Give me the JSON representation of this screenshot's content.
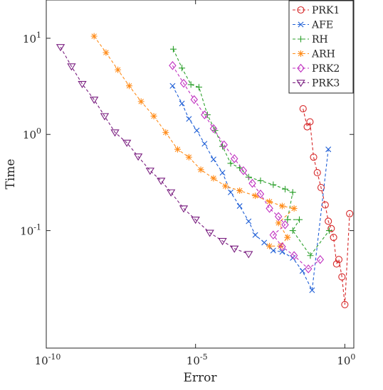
{
  "chart_data": {
    "type": "scatter",
    "title": "",
    "xlabel": "Error",
    "ylabel": "Time",
    "xscale": "log",
    "yscale": "log",
    "xlim": [
      1e-10,
      2
    ],
    "ylim": [
      0.006,
      25
    ],
    "xticks": [
      {
        "value": 1e-10,
        "base": "10",
        "exp": "-10"
      },
      {
        "value": 1e-05,
        "base": "10",
        "exp": "-5"
      },
      {
        "value": 1,
        "base": "10",
        "exp": "0"
      }
    ],
    "yticks": [
      {
        "value": 0.1,
        "base": "10",
        "exp": "-1"
      },
      {
        "value": 1,
        "base": "10",
        "exp": "0"
      },
      {
        "value": 10,
        "base": "10",
        "exp": "1"
      }
    ],
    "grid": false,
    "legend_position": "top-right",
    "series": [
      {
        "name": "PRK1",
        "color": "#d62728",
        "marker": "circle",
        "points": [
          [
            0.04,
            1.85
          ],
          [
            0.055,
            1.2
          ],
          [
            0.068,
            1.35
          ],
          [
            0.09,
            0.58
          ],
          [
            0.12,
            0.4
          ],
          [
            0.16,
            0.28
          ],
          [
            0.22,
            0.185
          ],
          [
            0.28,
            0.125
          ],
          [
            0.35,
            0.105
          ],
          [
            0.42,
            0.085
          ],
          [
            0.53,
            0.045
          ],
          [
            0.63,
            0.05
          ],
          [
            0.8,
            0.033
          ],
          [
            1.0,
            0.017
          ],
          [
            1.45,
            0.15
          ]
        ]
      },
      {
        "name": "AFE",
        "color": "#1f5fd6",
        "marker": "x",
        "points": [
          [
            1.7e-06,
            3.2
          ],
          [
            3.5e-06,
            2.1
          ],
          [
            6e-06,
            1.45
          ],
          [
            1.1e-05,
            1.1
          ],
          [
            2e-05,
            0.8
          ],
          [
            4e-05,
            0.55
          ],
          [
            8e-05,
            0.4
          ],
          [
            0.00015,
            0.25
          ],
          [
            0.0003,
            0.18
          ],
          [
            0.0006,
            0.125
          ],
          [
            0.001,
            0.09
          ],
          [
            0.002,
            0.075
          ],
          [
            0.004,
            0.062
          ],
          [
            0.008,
            0.06
          ],
          [
            0.018,
            0.052
          ],
          [
            0.038,
            0.038
          ],
          [
            0.08,
            0.024
          ],
          [
            0.28,
            0.7
          ]
        ]
      },
      {
        "name": "RH",
        "color": "#2ca02c",
        "marker": "plus",
        "points": [
          [
            1.8e-06,
            7.7
          ],
          [
            3.5e-06,
            4.9
          ],
          [
            7e-06,
            3.3
          ],
          [
            1.3e-05,
            3.1
          ],
          [
            2.5e-05,
            1.6
          ],
          [
            4.5e-05,
            1.1
          ],
          [
            8e-05,
            0.75
          ],
          [
            0.00015,
            0.5
          ],
          [
            0.0003,
            0.45
          ],
          [
            0.0006,
            0.36
          ],
          [
            0.0015,
            0.33
          ],
          [
            0.004,
            0.3
          ],
          [
            0.01,
            0.27
          ],
          [
            0.018,
            0.25
          ],
          [
            0.012,
            0.13
          ],
          [
            0.03,
            0.13
          ],
          [
            0.018,
            0.1
          ],
          [
            0.07,
            0.055
          ],
          [
            0.3,
            0.1
          ]
        ]
      },
      {
        "name": "ARH",
        "color": "#ff8c1a",
        "marker": "star",
        "points": [
          [
            4e-09,
            10.5
          ],
          [
            1e-08,
            7.1
          ],
          [
            2.5e-08,
            4.7
          ],
          [
            6e-08,
            3.2
          ],
          [
            1.5e-07,
            2.2
          ],
          [
            4e-07,
            1.55
          ],
          [
            1e-06,
            1.05
          ],
          [
            2.5e-06,
            0.7
          ],
          [
            6e-06,
            0.58
          ],
          [
            1.5e-05,
            0.43
          ],
          [
            4e-05,
            0.35
          ],
          [
            0.0001,
            0.29
          ],
          [
            0.0003,
            0.26
          ],
          [
            0.001,
            0.23
          ],
          [
            0.003,
            0.2
          ],
          [
            0.008,
            0.18
          ],
          [
            0.02,
            0.17
          ],
          [
            0.006,
            0.12
          ],
          [
            0.012,
            0.085
          ],
          [
            0.007,
            0.069
          ],
          [
            0.003,
            0.069
          ]
        ]
      },
      {
        "name": "PRK2",
        "color": "#c030c0",
        "marker": "diamond",
        "points": [
          [
            1.7e-06,
            5.2
          ],
          [
            4e-06,
            3.4
          ],
          [
            9e-06,
            2.3
          ],
          [
            2e-05,
            1.6
          ],
          [
            4e-05,
            1.15
          ],
          [
            9e-05,
            0.78
          ],
          [
            0.0002,
            0.56
          ],
          [
            0.0004,
            0.42
          ],
          [
            0.0008,
            0.31
          ],
          [
            0.0015,
            0.24
          ],
          [
            0.003,
            0.17
          ],
          [
            0.006,
            0.14
          ],
          [
            0.01,
            0.115
          ],
          [
            0.004,
            0.09
          ],
          [
            0.008,
            0.068
          ],
          [
            0.02,
            0.055
          ],
          [
            0.06,
            0.04
          ],
          [
            0.15,
            0.05
          ]
        ]
      },
      {
        "name": "PRK3",
        "color": "#7a1f80",
        "marker": "triangle-down",
        "points": [
          [
            3e-10,
            8.1
          ],
          [
            7e-10,
            5.1
          ],
          [
            1.6e-09,
            3.35
          ],
          [
            4e-09,
            2.3
          ],
          [
            9e-09,
            1.55
          ],
          [
            2e-08,
            1.05
          ],
          [
            5e-08,
            0.82
          ],
          [
            1.2e-07,
            0.59
          ],
          [
            3e-07,
            0.42
          ],
          [
            7e-07,
            0.33
          ],
          [
            1.5e-06,
            0.25
          ],
          [
            4e-06,
            0.17
          ],
          [
            1e-05,
            0.13
          ],
          [
            3e-05,
            0.095
          ],
          [
            8e-05,
            0.078
          ],
          [
            0.0002,
            0.065
          ],
          [
            0.0006,
            0.057
          ]
        ]
      }
    ]
  }
}
